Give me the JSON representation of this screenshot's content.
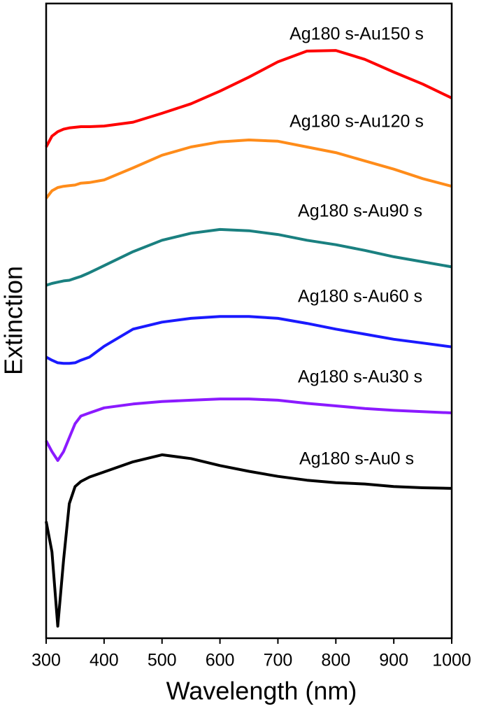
{
  "chart_data": {
    "type": "line",
    "x_label": "Wavelength (nm)",
    "y_label": "Extinction",
    "x": [
      300,
      310,
      320,
      330,
      340,
      350,
      360,
      375,
      400,
      450,
      500,
      550,
      600,
      650,
      700,
      750,
      800,
      850,
      900,
      950,
      1000
    ],
    "xlim": [
      300,
      1000
    ],
    "xticks": [
      300,
      400,
      500,
      600,
      700,
      800,
      900,
      1000
    ],
    "ylim": [
      0,
      100
    ],
    "yticks": [],
    "series": [
      {
        "name": "Ag180 s-Au150 s",
        "color": "#ff0000",
        "values": [
          77.4,
          79.1,
          79.8,
          80.2,
          80.4,
          80.5,
          80.6,
          80.6,
          80.7,
          81.3,
          82.7,
          84.2,
          86.2,
          88.4,
          90.8,
          92.5,
          92.6,
          91.2,
          89.2,
          87.3,
          85.1
        ]
      },
      {
        "name": "Ag180 s-Au120 s",
        "color": "#ff8c1a",
        "values": [
          69.3,
          70.5,
          71.0,
          71.2,
          71.3,
          71.4,
          71.7,
          71.8,
          72.2,
          74.1,
          76.1,
          77.4,
          78.2,
          78.5,
          78.3,
          77.4,
          76.5,
          75.2,
          73.9,
          72.4,
          71.2
        ]
      },
      {
        "name": "Ag180 s-Au90 s",
        "color": "#1a8080",
        "values": [
          55.6,
          55.9,
          56.1,
          56.3,
          56.4,
          56.7,
          57.0,
          57.6,
          58.7,
          60.9,
          62.7,
          63.8,
          64.4,
          64.2,
          63.6,
          62.7,
          62.0,
          61.1,
          60.1,
          59.3,
          58.5
        ]
      },
      {
        "name": "Ag180 s-Au60 s",
        "color": "#1a1aff",
        "values": [
          44.3,
          43.8,
          43.4,
          43.3,
          43.3,
          43.4,
          43.8,
          44.3,
          46.0,
          48.7,
          49.8,
          50.4,
          50.7,
          50.7,
          50.4,
          49.6,
          48.7,
          47.9,
          47.1,
          46.5,
          45.9
        ]
      },
      {
        "name": "Ag180 s-Au30 s",
        "color": "#8b1aff",
        "values": [
          31.1,
          29.4,
          28.0,
          29.4,
          31.6,
          33.8,
          35.0,
          35.5,
          36.3,
          36.9,
          37.3,
          37.5,
          37.7,
          37.7,
          37.5,
          37.0,
          36.6,
          36.2,
          35.9,
          35.7,
          35.5
        ]
      },
      {
        "name": "Ag180 s-Au0 s",
        "color": "#000000",
        "values": [
          18.4,
          13.6,
          1.9,
          12.3,
          21.2,
          23.9,
          24.7,
          25.4,
          26.2,
          27.8,
          28.9,
          28.3,
          27.2,
          26.3,
          25.5,
          24.9,
          24.5,
          24.3,
          23.9,
          23.7,
          23.6
        ]
      }
    ]
  }
}
